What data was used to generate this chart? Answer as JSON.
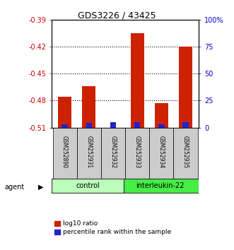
{
  "title": "GDS3226 / 43425",
  "samples": [
    "GSM252890",
    "GSM252931",
    "GSM252932",
    "GSM252933",
    "GSM252934",
    "GSM252935"
  ],
  "log10_ratio": [
    -0.476,
    -0.464,
    -0.51,
    -0.405,
    -0.483,
    -0.42
  ],
  "percentile_rank": [
    3,
    4,
    5,
    5,
    3,
    5
  ],
  "baseline": -0.51,
  "ylim_left": [
    -0.51,
    -0.39
  ],
  "ylim_right": [
    0,
    100
  ],
  "yticks_left": [
    -0.51,
    -0.48,
    -0.45,
    -0.42,
    -0.39
  ],
  "yticks_right": [
    0,
    25,
    50,
    75,
    100
  ],
  "bar_color_red": "#cc2200",
  "bar_color_blue": "#2222cc",
  "control_color": "#bbffbb",
  "interleukin_color": "#44ee44",
  "group_bg_color": "#cccccc",
  "control_label": "control",
  "interleukin_label": "interleukin-22",
  "agent_label": "agent",
  "legend_red": "log10 ratio",
  "legend_blue": "percentile rank within the sample",
  "left_axis_color": "#cc0000",
  "right_axis_color": "#0000cc",
  "bar_width": 0.55
}
